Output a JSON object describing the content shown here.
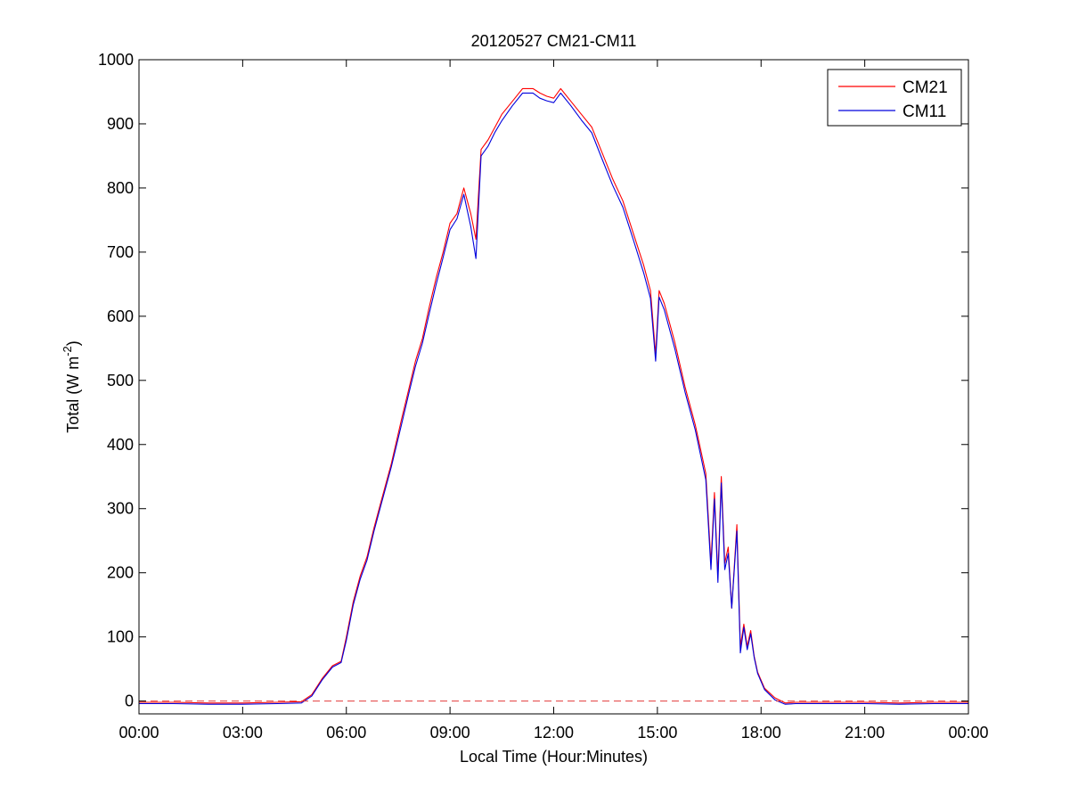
{
  "chart_data": {
    "type": "line",
    "title": "20120527 CM21-CM11",
    "xlabel": "Local Time (Hour:Minutes)",
    "ylabel_main": "Total (W m",
    "ylabel_sup": "-2",
    "ylabel_close": ")",
    "xlim": [
      0,
      24
    ],
    "ylim": [
      -20,
      1000
    ],
    "xticks": [
      0,
      3,
      6,
      9,
      12,
      15,
      18,
      21,
      24
    ],
    "xtick_labels": [
      "00:00",
      "03:00",
      "06:00",
      "09:00",
      "12:00",
      "15:00",
      "18:00",
      "21:00",
      "00:00"
    ],
    "yticks": [
      0,
      100,
      200,
      300,
      400,
      500,
      600,
      700,
      800,
      900,
      1000
    ],
    "ytick_labels": [
      "0",
      "100",
      "200",
      "300",
      "400",
      "500",
      "600",
      "700",
      "800",
      "900",
      "1000"
    ],
    "grid": false,
    "legend_position": "top-right",
    "reference_line": {
      "y": 0,
      "color": "#e23b3b",
      "style": "dashed"
    },
    "series": [
      {
        "name": "CM21",
        "color": "#ff0000",
        "x": [
          0,
          1,
          2,
          3,
          4,
          4.7,
          5.0,
          5.3,
          5.6,
          5.85,
          6.0,
          6.2,
          6.4,
          6.6,
          6.8,
          7.0,
          7.3,
          7.6,
          7.8,
          8.0,
          8.2,
          8.4,
          8.6,
          8.8,
          9.0,
          9.2,
          9.4,
          9.6,
          9.75,
          9.9,
          10.1,
          10.3,
          10.5,
          10.8,
          11.1,
          11.4,
          11.6,
          11.8,
          12.0,
          12.2,
          12.5,
          12.8,
          13.1,
          13.4,
          13.7,
          14.0,
          14.3,
          14.6,
          14.8,
          14.95,
          15.05,
          15.2,
          15.5,
          15.8,
          16.1,
          16.4,
          16.55,
          16.65,
          16.75,
          16.85,
          16.95,
          17.05,
          17.15,
          17.3,
          17.4,
          17.5,
          17.6,
          17.7,
          17.8,
          17.9,
          18.1,
          18.4,
          18.7,
          19.0,
          19.5,
          20,
          21,
          22,
          23,
          24
        ],
        "y": [
          -2,
          -2,
          -3,
          -3,
          -2,
          -1,
          10,
          35,
          55,
          62,
          100,
          155,
          195,
          225,
          270,
          310,
          370,
          440,
          485,
          530,
          565,
          615,
          660,
          700,
          745,
          760,
          800,
          760,
          720,
          860,
          875,
          895,
          915,
          935,
          955,
          955,
          948,
          943,
          940,
          955,
          935,
          915,
          895,
          855,
          815,
          780,
          730,
          680,
          640,
          540,
          640,
          620,
          560,
          490,
          430,
          355,
          215,
          325,
          195,
          350,
          215,
          240,
          145,
          275,
          85,
          120,
          85,
          110,
          70,
          45,
          20,
          5,
          -3,
          -2,
          -2,
          -2,
          -2,
          -3,
          -2,
          -2
        ]
      },
      {
        "name": "CM11",
        "color": "#0000dd",
        "x": [
          0,
          1,
          2,
          3,
          4,
          4.7,
          5.0,
          5.3,
          5.6,
          5.85,
          6.0,
          6.2,
          6.4,
          6.6,
          6.8,
          7.0,
          7.3,
          7.6,
          7.8,
          8.0,
          8.2,
          8.4,
          8.6,
          8.8,
          9.0,
          9.2,
          9.4,
          9.6,
          9.75,
          9.9,
          10.1,
          10.3,
          10.5,
          10.8,
          11.1,
          11.4,
          11.6,
          11.8,
          12.0,
          12.2,
          12.5,
          12.8,
          13.1,
          13.4,
          13.7,
          14.0,
          14.3,
          14.6,
          14.8,
          14.95,
          15.05,
          15.2,
          15.5,
          15.8,
          16.1,
          16.4,
          16.55,
          16.65,
          16.75,
          16.85,
          16.95,
          17.05,
          17.15,
          17.3,
          17.4,
          17.5,
          17.6,
          17.7,
          17.8,
          17.9,
          18.1,
          18.4,
          18.7,
          19.0,
          19.5,
          20,
          21,
          22,
          23,
          24
        ],
        "y": [
          -4,
          -4,
          -5,
          -5,
          -4,
          -3,
          8,
          33,
          53,
          60,
          95,
          150,
          190,
          220,
          265,
          305,
          365,
          432,
          478,
          522,
          558,
          605,
          650,
          692,
          735,
          752,
          790,
          740,
          690,
          850,
          865,
          887,
          905,
          928,
          948,
          948,
          940,
          936,
          933,
          948,
          928,
          906,
          886,
          845,
          805,
          770,
          720,
          668,
          628,
          530,
          630,
          610,
          550,
          482,
          422,
          345,
          205,
          315,
          185,
          340,
          205,
          230,
          145,
          265,
          75,
          115,
          80,
          105,
          68,
          43,
          18,
          2,
          -5,
          -4,
          -4,
          -4,
          -4,
          -5,
          -4,
          -4
        ]
      }
    ]
  }
}
